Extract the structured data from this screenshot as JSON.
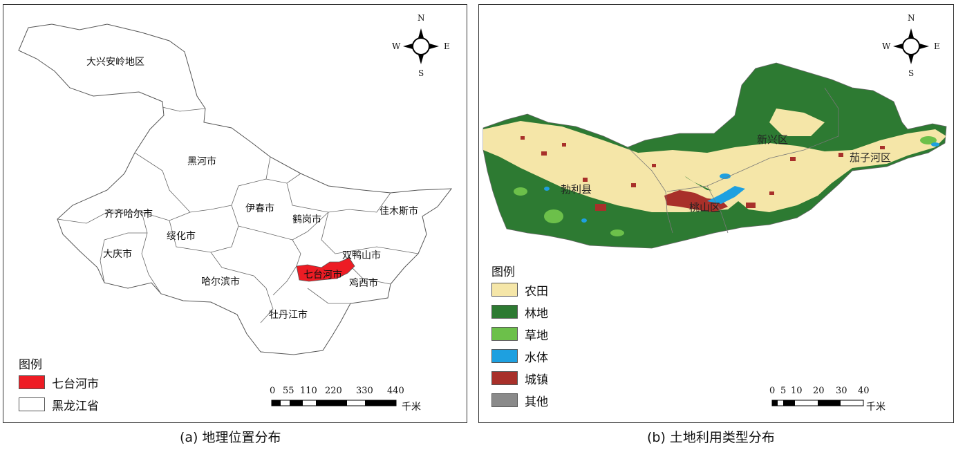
{
  "panel_a": {
    "caption": "(a) 地理位置分布",
    "regions": [
      "大兴安岭地区",
      "黑河市",
      "齐齐哈尔市",
      "伊春市",
      "鹤岗市",
      "佳木斯市",
      "绥化市",
      "大庆市",
      "双鸭山市",
      "七台河市",
      "哈尔滨市",
      "鸡西市",
      "牡丹江市"
    ],
    "highlight_region": "七台河市",
    "legend": {
      "title": "图例",
      "items": [
        {
          "label": "七台河市",
          "color": "#ed1c24"
        },
        {
          "label": "黑龙江省",
          "color": "#ffffff"
        }
      ]
    },
    "scale": {
      "ticks": [
        "0",
        "55",
        "110",
        "220",
        "330",
        "440"
      ],
      "unit": "千米"
    },
    "compass": {
      "n": "N",
      "s": "S",
      "e": "E",
      "w": "W"
    }
  },
  "panel_b": {
    "caption": "(b) 土地利用类型分布",
    "districts": [
      "新兴区",
      "茄子河区",
      "勃利县",
      "桃山区"
    ],
    "legend": {
      "title": "图例",
      "items": [
        {
          "label": "农田",
          "color": "#f5e6a8"
        },
        {
          "label": "林地",
          "color": "#2d7a32"
        },
        {
          "label": "草地",
          "color": "#6cc04a"
        },
        {
          "label": "水体",
          "color": "#1ea0e0"
        },
        {
          "label": "城镇",
          "color": "#a8302a"
        },
        {
          "label": "其他",
          "color": "#8a8a8a"
        }
      ]
    },
    "scale": {
      "ticks": [
        "0",
        "5",
        "10",
        "20",
        "30",
        "40"
      ],
      "unit": "千米"
    },
    "compass": {
      "n": "N",
      "s": "S",
      "e": "E",
      "w": "W"
    }
  }
}
